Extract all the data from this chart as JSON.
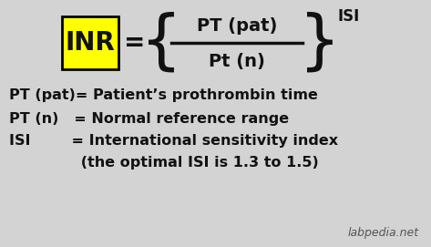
{
  "bg_color": "#d3d3d3",
  "text_color": "#111111",
  "yellow_box_color": "#ffff00",
  "yellow_box_border": "#000000",
  "inr_text": "INR",
  "equals_text": "=",
  "numerator_text": "PT (pat)",
  "denominator_text": "Pt (n)",
  "exponent_text": "ISI",
  "line1": "PT (pat)= Patient’s prothrombin time",
  "line2": "PT (n)   = Normal reference range",
  "line3": "ISI        = International sensitivity index",
  "line4": "              (the optimal ISI is 1.3 to 1.5)",
  "watermark": "labpedia.net",
  "font_size_formula": 14,
  "font_size_body": 11.5,
  "font_size_watermark": 9
}
